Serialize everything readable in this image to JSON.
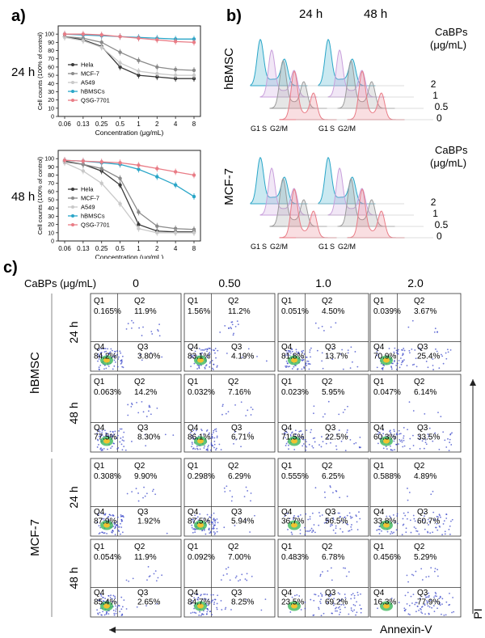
{
  "colors": {
    "hela": "#3a3a3a",
    "mcf7": "#8a8a8a",
    "a549": "#c9c9c9",
    "hbmsc": "#2aa6c8",
    "qsg": "#e97c86"
  },
  "panel_a": {
    "label": "a)",
    "rows": [
      "24 h",
      "48 h"
    ],
    "ylabel": "Cell counts (100% of control)",
    "xlabel": "Concentration (μg/mL)",
    "xticks": [
      "0.06",
      "0.13",
      "0.25",
      "0.5",
      "1",
      "2",
      "4",
      "8"
    ],
    "yticks": [
      "0",
      "10",
      "20",
      "30",
      "40",
      "50",
      "60",
      "70",
      "80",
      "90",
      "100"
    ],
    "legend": [
      "Hela",
      "MCF-7",
      "A549",
      "hBMSCs",
      "QSG-7701"
    ]
  },
  "panel_b": {
    "label": "b)",
    "times": [
      "24 h",
      "48 h"
    ],
    "rows": [
      "hBMSC",
      "MCF-7"
    ],
    "title_line1": "CaBPs",
    "title_line2": "(μg/mL)",
    "levels": [
      "2",
      "1",
      "0.5",
      "0"
    ],
    "phase_labels": [
      "G1",
      "S",
      "G2/M"
    ]
  },
  "panel_c": {
    "label": "c)",
    "conc_label": "CaBPs (μg/mL)",
    "concs": [
      "0",
      "0.50",
      "1.0",
      "2.0"
    ],
    "cell_lines": [
      "hBMSC",
      "MCF-7"
    ],
    "times": [
      "24 h",
      "48 h"
    ],
    "x_axis": "Annexin-V",
    "y_axis": "PI",
    "quadrant_names": [
      "Q1",
      "Q2",
      "Q3",
      "Q4"
    ],
    "plots": [
      [
        [
          "0.165%",
          "11.9%",
          "3.80%",
          "84.2%"
        ],
        [
          "1.56%",
          "11.2%",
          "4.19%",
          "83.1%"
        ],
        [
          "0.051%",
          "4.50%",
          "13.7%",
          "81.8%"
        ],
        [
          "0.039%",
          "3.67%",
          "25.4%",
          "70.9%"
        ]
      ],
      [
        [
          "0.063%",
          "14.2%",
          "8.30%",
          "77.5%"
        ],
        [
          "0.032%",
          "7.16%",
          "6.71%",
          "86.1%"
        ],
        [
          "0.023%",
          "5.95%",
          "22.5%",
          "71.5%"
        ],
        [
          "0.047%",
          "6.14%",
          "33.5%",
          "60.3%"
        ]
      ],
      [
        [
          "0.308%",
          "9.90%",
          "1.92%",
          "87.9%"
        ],
        [
          "0.298%",
          "6.29%",
          "5.94%",
          "87.5%"
        ],
        [
          "0.555%",
          "6.25%",
          "56.5%",
          "36.7%"
        ],
        [
          "0.588%",
          "4.89%",
          "60.7%",
          "33.8%"
        ]
      ],
      [
        [
          "0.054%",
          "11.9%",
          "2.65%",
          "85.4%"
        ],
        [
          "0.092%",
          "7.00%",
          "8.25%",
          "84.7%"
        ],
        [
          "0.483%",
          "6.78%",
          "69.2%",
          "23.5%"
        ],
        [
          "0.456%",
          "5.29%",
          "77.9%",
          "16.3%"
        ]
      ]
    ]
  },
  "chart_data": [
    {
      "type": "line",
      "title": "24 h",
      "xlabel": "Concentration (μg/mL)",
      "ylabel": "Cell counts (100% of control)",
      "x": [
        0.06,
        0.13,
        0.25,
        0.5,
        1,
        2,
        4,
        8
      ],
      "xscale": "log2",
      "ylim": [
        0,
        110
      ],
      "series": [
        {
          "name": "Hela",
          "values": [
            97,
            93,
            85,
            60,
            50,
            48,
            46,
            46
          ]
        },
        {
          "name": "MCF-7",
          "values": [
            97,
            95,
            90,
            78,
            68,
            60,
            57,
            56
          ]
        },
        {
          "name": "A549",
          "values": [
            96,
            92,
            84,
            65,
            55,
            52,
            50,
            50
          ]
        },
        {
          "name": "hBMSCs",
          "values": [
            100,
            99,
            98,
            97,
            96,
            95,
            94,
            94
          ]
        },
        {
          "name": "QSG-7701",
          "values": [
            100,
            100,
            99,
            97,
            95,
            93,
            91,
            90
          ]
        }
      ]
    },
    {
      "type": "line",
      "title": "48 h",
      "xlabel": "Concentration (μg/mL)",
      "ylabel": "Cell counts (100% of control)",
      "x": [
        0.06,
        0.13,
        0.25,
        0.5,
        1,
        2,
        4,
        8
      ],
      "xscale": "log2",
      "ylim": [
        0,
        110
      ],
      "series": [
        {
          "name": "Hela",
          "values": [
            97,
            93,
            85,
            68,
            20,
            12,
            11,
            11
          ]
        },
        {
          "name": "MCF-7",
          "values": [
            96,
            93,
            88,
            76,
            35,
            18,
            15,
            14
          ]
        },
        {
          "name": "A549",
          "values": [
            95,
            85,
            70,
            45,
            15,
            10,
            10,
            10
          ]
        },
        {
          "name": "hBMSCs",
          "values": [
            98,
            97,
            95,
            93,
            87,
            78,
            68,
            54
          ]
        },
        {
          "name": "QSG-7701",
          "values": [
            98,
            97,
            96,
            95,
            92,
            88,
            84,
            80
          ]
        }
      ]
    }
  ]
}
